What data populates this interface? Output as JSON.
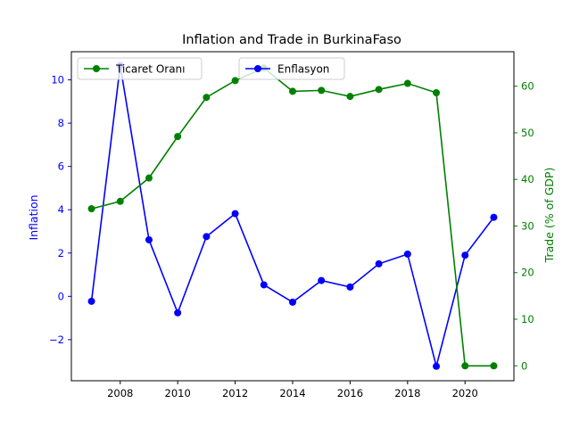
{
  "chart_data": {
    "type": "line",
    "title": "Inflation and Trade in BurkinaFaso",
    "xlabel": "",
    "y_left_label": "Inflation",
    "y_right_label": "Trade (% of GDP)",
    "x": [
      2007,
      2008,
      2009,
      2010,
      2011,
      2012,
      2013,
      2014,
      2015,
      2016,
      2017,
      2018,
      2019,
      2020,
      2021
    ],
    "x_ticks": [
      "2008",
      "2010",
      "2012",
      "2014",
      "2016",
      "2018",
      "2020"
    ],
    "y_left_ticks": [
      "−2",
      "0",
      "2",
      "4",
      "6",
      "8",
      "10"
    ],
    "y_right_ticks": [
      "0",
      "10",
      "20",
      "30",
      "40",
      "50",
      "60"
    ],
    "xlim": [
      2006.3,
      2021.7
    ],
    "y_left_lim": [
      -3.9,
      11.3
    ],
    "y_right_lim": [
      -3.2,
      67.4
    ],
    "grid": false,
    "series": [
      {
        "name": "Enflasyon",
        "axis": "left",
        "color": "#0000ff",
        "values": [
          -0.23,
          10.66,
          2.61,
          -0.76,
          2.76,
          3.82,
          0.53,
          -0.27,
          0.73,
          0.43,
          1.5,
          1.95,
          -3.23,
          1.9,
          3.65
        ]
      },
      {
        "name": "Ticaret Oranı",
        "axis": "right",
        "color": "#008000",
        "values": [
          33.7,
          35.3,
          40.3,
          49.2,
          57.6,
          61.2,
          63.9,
          58.9,
          59.1,
          57.8,
          59.3,
          60.6,
          58.6,
          0.0,
          0.0
        ]
      }
    ],
    "legends": [
      {
        "placement": "upper-left",
        "series": "Ticaret Oranı"
      },
      {
        "placement": "upper-center",
        "series": "Enflasyon"
      }
    ],
    "colors": {
      "left_axis": "#0000ff",
      "right_axis": "#008000",
      "frame": "#000000"
    }
  }
}
